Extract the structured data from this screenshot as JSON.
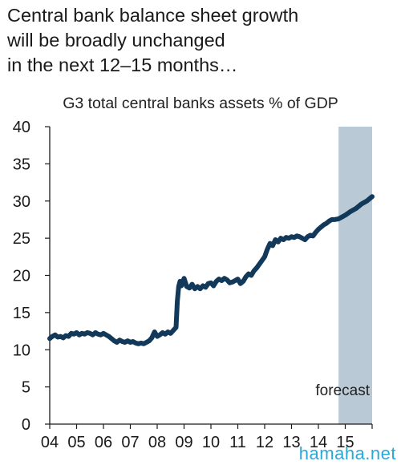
{
  "headline": {
    "line1": "Central bank balance sheet growth",
    "line2": "will be broadly unchanged",
    "line3": "in the next 12–15 months…"
  },
  "watermark": "hamaha.net",
  "colors": {
    "line": "#12395a",
    "forecast_band": "#b9c9d6",
    "axis": "#1a1a1a"
  },
  "chart_data": {
    "type": "line",
    "subtitle": "G3 total central banks assets % of GDP",
    "xlabel": "",
    "ylabel": "",
    "xlim": [
      2004.0,
      2016.0
    ],
    "ylim": [
      0,
      40
    ],
    "yticks": [
      0,
      5,
      10,
      15,
      20,
      25,
      30,
      35,
      40
    ],
    "xtick_positions": [
      2004,
      2005,
      2006,
      2007,
      2008,
      2009,
      2010,
      2011,
      2012,
      2013,
      2014,
      2015
    ],
    "xtick_labels": [
      "04",
      "05",
      "06",
      "07",
      "08",
      "09",
      "10",
      "11",
      "12",
      "13",
      "14",
      "15"
    ],
    "grid": false,
    "forecast": {
      "label": "forecast",
      "start": 2014.75,
      "end": 2016.0
    },
    "series": [
      {
        "x": [
          2004.0,
          2004.1,
          2004.2,
          2004.3,
          2004.4,
          2004.5,
          2004.6,
          2004.7,
          2004.8,
          2004.9,
          2005.0,
          2005.1,
          2005.2,
          2005.3,
          2005.4,
          2005.5,
          2005.6,
          2005.7,
          2005.8,
          2005.9,
          2006.0,
          2006.1,
          2006.2,
          2006.3,
          2006.4,
          2006.5,
          2006.6,
          2006.7,
          2006.8,
          2006.9,
          2007.0,
          2007.1,
          2007.2,
          2007.3,
          2007.4,
          2007.5,
          2007.6,
          2007.7,
          2007.8,
          2007.9,
          2008.0,
          2008.1,
          2008.2,
          2008.3,
          2008.4,
          2008.5,
          2008.6,
          2008.7,
          2008.75,
          2008.8,
          2008.85,
          2008.9,
          2009.0,
          2009.1,
          2009.2,
          2009.3,
          2009.4,
          2009.5,
          2009.6,
          2009.7,
          2009.8,
          2009.9,
          2010.0,
          2010.1,
          2010.2,
          2010.3,
          2010.4,
          2010.5,
          2010.6,
          2010.7,
          2010.8,
          2010.9,
          2011.0,
          2011.1,
          2011.2,
          2011.3,
          2011.4,
          2011.5,
          2011.6,
          2011.7,
          2011.8,
          2011.9,
          2012.0,
          2012.1,
          2012.2,
          2012.3,
          2012.4,
          2012.5,
          2012.6,
          2012.7,
          2012.8,
          2012.9,
          2013.0,
          2013.1,
          2013.2,
          2013.3,
          2013.4,
          2013.5,
          2013.6,
          2013.7,
          2013.8,
          2013.9,
          2014.0,
          2014.1,
          2014.2,
          2014.3,
          2014.4,
          2014.5,
          2014.6,
          2014.75,
          2014.9,
          2015.0,
          2015.2,
          2015.4,
          2015.6,
          2015.8,
          2016.0
        ],
        "values": [
          11.5,
          11.8,
          12.0,
          11.7,
          11.8,
          11.6,
          11.9,
          11.8,
          12.2,
          12.1,
          12.3,
          12.0,
          12.2,
          12.1,
          12.3,
          12.2,
          12.0,
          12.3,
          12.1,
          12.0,
          12.2,
          12.0,
          11.8,
          11.5,
          11.2,
          11.0,
          11.3,
          11.1,
          11.0,
          11.2,
          11.0,
          11.1,
          10.9,
          10.8,
          10.9,
          10.8,
          11.0,
          11.2,
          11.6,
          12.4,
          11.8,
          12.0,
          12.3,
          12.1,
          12.4,
          12.2,
          12.6,
          13.0,
          16.5,
          18.5,
          19.2,
          18.6,
          19.6,
          18.5,
          18.3,
          18.8,
          18.2,
          18.5,
          18.2,
          18.6,
          18.4,
          18.9,
          19.0,
          18.6,
          19.2,
          19.5,
          19.3,
          19.6,
          19.4,
          19.0,
          19.1,
          19.3,
          19.5,
          18.9,
          19.2,
          19.8,
          20.2,
          20.0,
          20.6,
          21.0,
          21.5,
          22.0,
          22.5,
          23.5,
          24.3,
          24.0,
          24.8,
          24.5,
          25.0,
          24.8,
          25.1,
          25.0,
          25.2,
          25.1,
          25.3,
          25.2,
          25.0,
          24.8,
          25.2,
          25.4,
          25.3,
          25.8,
          26.2,
          26.5,
          26.8,
          27.0,
          27.3,
          27.5,
          27.5,
          27.6,
          27.9,
          28.1,
          28.6,
          29.0,
          29.6,
          30.0,
          30.6
        ]
      }
    ]
  }
}
